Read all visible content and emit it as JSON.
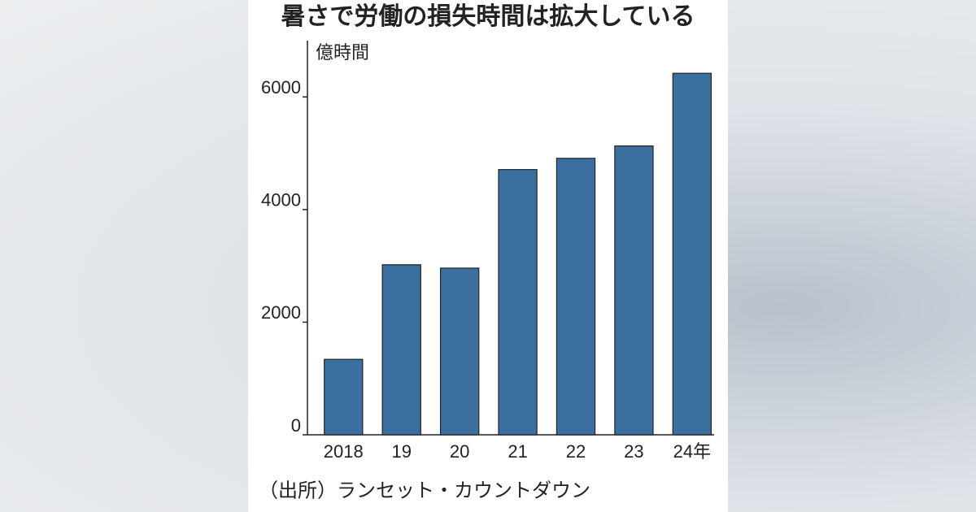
{
  "chart_data": {
    "type": "bar",
    "title": "暑さで労働の損失時間は拡大している",
    "y_label": "億時間",
    "categories": [
      "2018",
      "19",
      "20",
      "21",
      "22",
      "23",
      "24年"
    ],
    "values": [
      1340,
      3020,
      2960,
      4710,
      4910,
      5130,
      6420
    ],
    "color": "#3b6f9f",
    "ylim": [
      0,
      7000
    ],
    "yticks": [
      0,
      2000,
      4000,
      6000
    ],
    "grid": false,
    "source": "（出所）ランセット・カウントダウン"
  }
}
